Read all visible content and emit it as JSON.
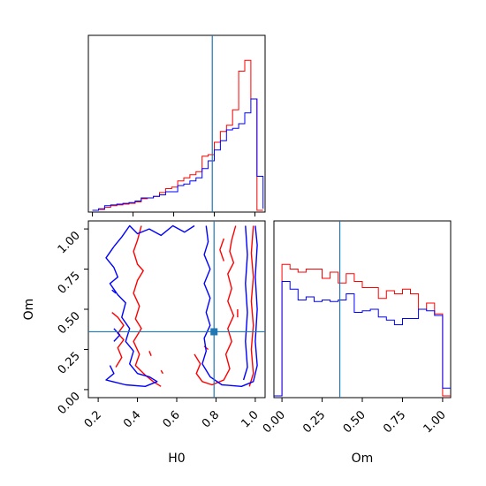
{
  "chart_data": {
    "type": "corner",
    "parameters": [
      "H0",
      "Om"
    ],
    "truth": {
      "H0": 0.79,
      "Om": 0.36
    },
    "colors": {
      "series_a": "#ff0000",
      "series_b": "#0000ff",
      "truth": "#1f77b4",
      "axes": "#000000"
    },
    "panels": [
      {
        "id": "hist-H0",
        "type": "step-histogram",
        "xlim": [
          0.18,
          1.05
        ],
        "bins": [
          0.2,
          0.23,
          0.26,
          0.29,
          0.32,
          0.35,
          0.38,
          0.41,
          0.44,
          0.47,
          0.5,
          0.53,
          0.56,
          0.59,
          0.62,
          0.65,
          0.68,
          0.71,
          0.74,
          0.77,
          0.8,
          0.83,
          0.86,
          0.89,
          0.92,
          0.95,
          0.98,
          1.01,
          1.04
        ],
        "series": [
          {
            "color_key": "series_a",
            "values": [
              0,
              0.005,
              0.02,
              0.03,
              0.035,
              0.04,
              0.045,
              0.055,
              0.075,
              0.08,
              0.09,
              0.115,
              0.14,
              0.15,
              0.19,
              0.21,
              0.23,
              0.25,
              0.35,
              0.36,
              0.44,
              0.51,
              0.55,
              0.65,
              0.9,
              0.97,
              0.72,
              0,
              0
            ]
          },
          {
            "color_key": "series_b",
            "values": [
              0,
              0.01,
              0.03,
              0.035,
              0.04,
              0.045,
              0.05,
              0.06,
              0.08,
              0.08,
              0.09,
              0.1,
              0.12,
              0.12,
              0.16,
              0.17,
              0.19,
              0.21,
              0.27,
              0.32,
              0.39,
              0.45,
              0.52,
              0.53,
              0.56,
              0.63,
              0.72,
              0.22,
              0.01
            ]
          }
        ]
      },
      {
        "id": "hist-Om",
        "type": "step-histogram",
        "xlim": [
          -0.05,
          1.05
        ],
        "xlabel": "Om",
        "xticks": [
          "0.00",
          "0.25",
          "0.50",
          "0.75",
          "1.00"
        ],
        "xtick_values": [
          0,
          0.25,
          0.5,
          0.75,
          1.0
        ],
        "bins": [
          -0.05,
          0.0,
          0.05,
          0.1,
          0.15,
          0.2,
          0.25,
          0.3,
          0.35,
          0.4,
          0.45,
          0.5,
          0.55,
          0.6,
          0.65,
          0.7,
          0.75,
          0.8,
          0.85,
          0.9,
          0.95,
          1.0,
          1.05
        ],
        "series": [
          {
            "color_key": "series_a",
            "values": [
              0,
              0.85,
              0.82,
              0.8,
              0.82,
              0.82,
              0.76,
              0.8,
              0.73,
              0.79,
              0.74,
              0.7,
              0.7,
              0.63,
              0.68,
              0.66,
              0.69,
              0.66,
              0.56,
              0.6,
              0.53,
              0
            ]
          },
          {
            "color_key": "series_b",
            "values": [
              0,
              0.74,
              0.69,
              0.62,
              0.64,
              0.61,
              0.62,
              0.61,
              0.62,
              0.66,
              0.54,
              0.55,
              0.56,
              0.51,
              0.49,
              0.46,
              0.5,
              0.5,
              0.56,
              0.55,
              0.52,
              0.05
            ]
          }
        ]
      },
      {
        "id": "contour-H0-Om",
        "type": "contour",
        "xlim": [
          0.15,
          1.05
        ],
        "ylim": [
          -0.05,
          1.05
        ],
        "xlabel": "H0",
        "ylabel": "Om",
        "xticks": [
          "0.2",
          "0.4",
          "0.6",
          "0.8",
          "1.0"
        ],
        "xtick_values": [
          0.2,
          0.4,
          0.6,
          0.8,
          1.0
        ],
        "yticks": [
          "0.00",
          "0.25",
          "0.50",
          "0.75",
          "1.00"
        ],
        "ytick_values": [
          0,
          0.25,
          0.5,
          0.75,
          1.0
        ],
        "truth_point_color_key": "truth",
        "series": [
          {
            "color_key": "series_a",
            "paths": [
              [
                [
                  0.42,
                  1.02
                ],
                [
                  0.4,
                  0.93
                ],
                [
                  0.38,
                  0.86
                ],
                [
                  0.4,
                  0.78
                ],
                [
                  0.43,
                  0.74
                ],
                [
                  0.4,
                  0.68
                ],
                [
                  0.38,
                  0.6
                ],
                [
                  0.41,
                  0.52
                ],
                [
                  0.39,
                  0.44
                ],
                [
                  0.42,
                  0.38
                ],
                [
                  0.38,
                  0.3
                ],
                [
                  0.41,
                  0.22
                ],
                [
                  0.39,
                  0.15
                ],
                [
                  0.44,
                  0.09
                ],
                [
                  0.48,
                  0.05
                ],
                [
                  0.52,
                  0.02
                ]
              ],
              [
                [
                  0.9,
                  1.02
                ],
                [
                  0.88,
                  0.93
                ],
                [
                  0.87,
                  0.86
                ],
                [
                  0.89,
                  0.79
                ],
                [
                  0.86,
                  0.72
                ],
                [
                  0.88,
                  0.63
                ],
                [
                  0.86,
                  0.55
                ],
                [
                  0.89,
                  0.46
                ],
                [
                  0.86,
                  0.38
                ],
                [
                  0.88,
                  0.3
                ],
                [
                  0.85,
                  0.22
                ],
                [
                  0.87,
                  0.13
                ],
                [
                  0.84,
                  0.06
                ],
                [
                  0.78,
                  0.03
                ],
                [
                  0.73,
                  0.05
                ],
                [
                  0.7,
                  0.1
                ],
                [
                  0.72,
                  0.16
                ],
                [
                  0.69,
                  0.22
                ]
              ],
              [
                [
                  0.99,
                  1.02
                ],
                [
                  0.98,
                  0.85
                ],
                [
                  0.99,
                  0.7
                ],
                [
                  0.98,
                  0.55
                ],
                [
                  0.99,
                  0.4
                ],
                [
                  0.98,
                  0.25
                ],
                [
                  0.99,
                  0.1
                ],
                [
                  0.97,
                  0.02
                ]
              ],
              [
                [
                  0.27,
                  0.48
                ],
                [
                  0.3,
                  0.45
                ],
                [
                  0.33,
                  0.4
                ],
                [
                  0.3,
                  0.35
                ],
                [
                  0.33,
                  0.31
                ],
                [
                  0.3,
                  0.26
                ],
                [
                  0.32,
                  0.2
                ],
                [
                  0.29,
                  0.14
                ]
              ],
              [
                [
                  0.84,
                  0.94
                ],
                [
                  0.82,
                  0.87
                ],
                [
                  0.84,
                  0.8
                ]
              ],
              [
                [
                  0.46,
                  0.24
                ],
                [
                  0.47,
                  0.21
                ]
              ],
              [
                [
                  0.52,
                  0.12
                ],
                [
                  0.53,
                  0.1
                ]
              ],
              [
                [
                  0.91,
                  0.5
                ],
                [
                  0.91,
                  0.45
                ]
              ],
              [
                [
                  0.74,
                  0.27
                ],
                [
                  0.76,
                  0.25
                ]
              ]
            ]
          },
          {
            "color_key": "series_b",
            "paths": [
              [
                [
                  0.28,
                  0.89
                ],
                [
                  0.32,
                  0.95
                ],
                [
                  0.36,
                  1.02
                ],
                [
                  0.4,
                  0.97
                ],
                [
                  0.46,
                  1.0
                ],
                [
                  0.52,
                  0.96
                ],
                [
                  0.58,
                  1.02
                ],
                [
                  0.64,
                  0.98
                ],
                [
                  0.69,
                  1.02
                ]
              ],
              [
                [
                  0.28,
                  0.89
                ],
                [
                  0.24,
                  0.82
                ],
                [
                  0.28,
                  0.76
                ],
                [
                  0.3,
                  0.7
                ],
                [
                  0.26,
                  0.66
                ],
                [
                  0.3,
                  0.59
                ],
                [
                  0.34,
                  0.54
                ],
                [
                  0.32,
                  0.45
                ],
                [
                  0.36,
                  0.38
                ],
                [
                  0.34,
                  0.3
                ],
                [
                  0.38,
                  0.24
                ],
                [
                  0.36,
                  0.16
                ],
                [
                  0.4,
                  0.1
                ],
                [
                  0.46,
                  0.08
                ],
                [
                  0.5,
                  0.05
                ],
                [
                  0.44,
                  0.02
                ],
                [
                  0.34,
                  0.03
                ],
                [
                  0.24,
                  0.06
                ],
                [
                  0.28,
                  0.1
                ],
                [
                  0.26,
                  0.15
                ]
              ],
              [
                [
                  0.75,
                  1.02
                ],
                [
                  0.76,
                  0.92
                ],
                [
                  0.74,
                  0.84
                ],
                [
                  0.77,
                  0.75
                ],
                [
                  0.74,
                  0.66
                ],
                [
                  0.77,
                  0.57
                ],
                [
                  0.75,
                  0.48
                ],
                [
                  0.77,
                  0.4
                ],
                [
                  0.74,
                  0.32
                ],
                [
                  0.75,
                  0.24
                ],
                [
                  0.73,
                  0.16
                ],
                [
                  0.77,
                  0.08
                ],
                [
                  0.83,
                  0.03
                ],
                [
                  0.93,
                  0.02
                ],
                [
                  0.99,
                  0.05
                ],
                [
                  1.01,
                  0.15
                ],
                [
                  1.0,
                  0.3
                ],
                [
                  1.01,
                  0.5
                ],
                [
                  1.0,
                  0.7
                ],
                [
                  1.01,
                  0.9
                ],
                [
                  1.0,
                  1.02
                ]
              ],
              [
                [
                  0.95,
                  1.02
                ],
                [
                  0.96,
                  0.84
                ],
                [
                  0.95,
                  0.66
                ],
                [
                  0.96,
                  0.48
                ],
                [
                  0.95,
                  0.3
                ],
                [
                  0.96,
                  0.14
                ],
                [
                  0.94,
                  0.06
                ]
              ],
              [
                [
                  0.28,
                  0.38
                ],
                [
                  0.31,
                  0.34
                ],
                [
                  0.28,
                  0.3
                ]
              ],
              [
                [
                  0.27,
                  0.62
                ],
                [
                  0.29,
                  0.6
                ]
              ]
            ]
          }
        ]
      }
    ]
  }
}
